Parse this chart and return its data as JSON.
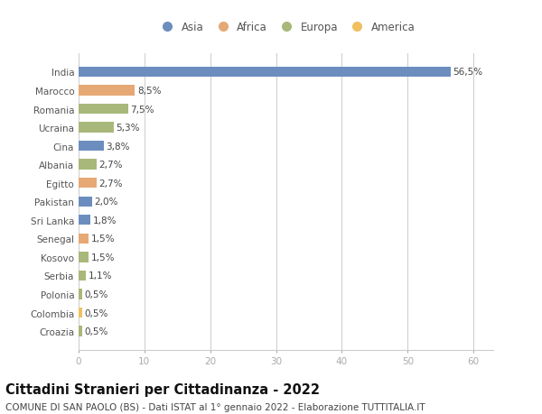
{
  "countries": [
    "India",
    "Marocco",
    "Romania",
    "Ucraina",
    "Cina",
    "Albania",
    "Egitto",
    "Pakistan",
    "Sri Lanka",
    "Senegal",
    "Kosovo",
    "Serbia",
    "Polonia",
    "Colombia",
    "Croazia"
  ],
  "values": [
    56.5,
    8.5,
    7.5,
    5.3,
    3.8,
    2.7,
    2.7,
    2.0,
    1.8,
    1.5,
    1.5,
    1.1,
    0.5,
    0.5,
    0.5
  ],
  "labels": [
    "56,5%",
    "8,5%",
    "7,5%",
    "5,3%",
    "3,8%",
    "2,7%",
    "2,7%",
    "2,0%",
    "1,8%",
    "1,5%",
    "1,5%",
    "1,1%",
    "0,5%",
    "0,5%",
    "0,5%"
  ],
  "continents": [
    "Asia",
    "Africa",
    "Europa",
    "Europa",
    "Asia",
    "Europa",
    "Africa",
    "Asia",
    "Asia",
    "Africa",
    "Europa",
    "Europa",
    "Europa",
    "America",
    "Europa"
  ],
  "colors": {
    "Asia": "#6c8ebf",
    "Africa": "#e6a875",
    "Europa": "#a8b87a",
    "America": "#f0c060"
  },
  "legend_order": [
    "Asia",
    "Africa",
    "Europa",
    "America"
  ],
  "title": "Cittadini Stranieri per Cittadinanza - 2022",
  "subtitle": "COMUNE DI SAN PAOLO (BS) - Dati ISTAT al 1° gennaio 2022 - Elaborazione TUTTITALIA.IT",
  "xlim": [
    0,
    63
  ],
  "xticks": [
    0,
    10,
    20,
    30,
    40,
    50,
    60
  ],
  "background_color": "#ffffff",
  "bar_height": 0.55,
  "grid_color": "#cccccc",
  "title_fontsize": 10.5,
  "subtitle_fontsize": 7.5,
  "label_fontsize": 7.5,
  "tick_fontsize": 7.5,
  "legend_fontsize": 8.5
}
